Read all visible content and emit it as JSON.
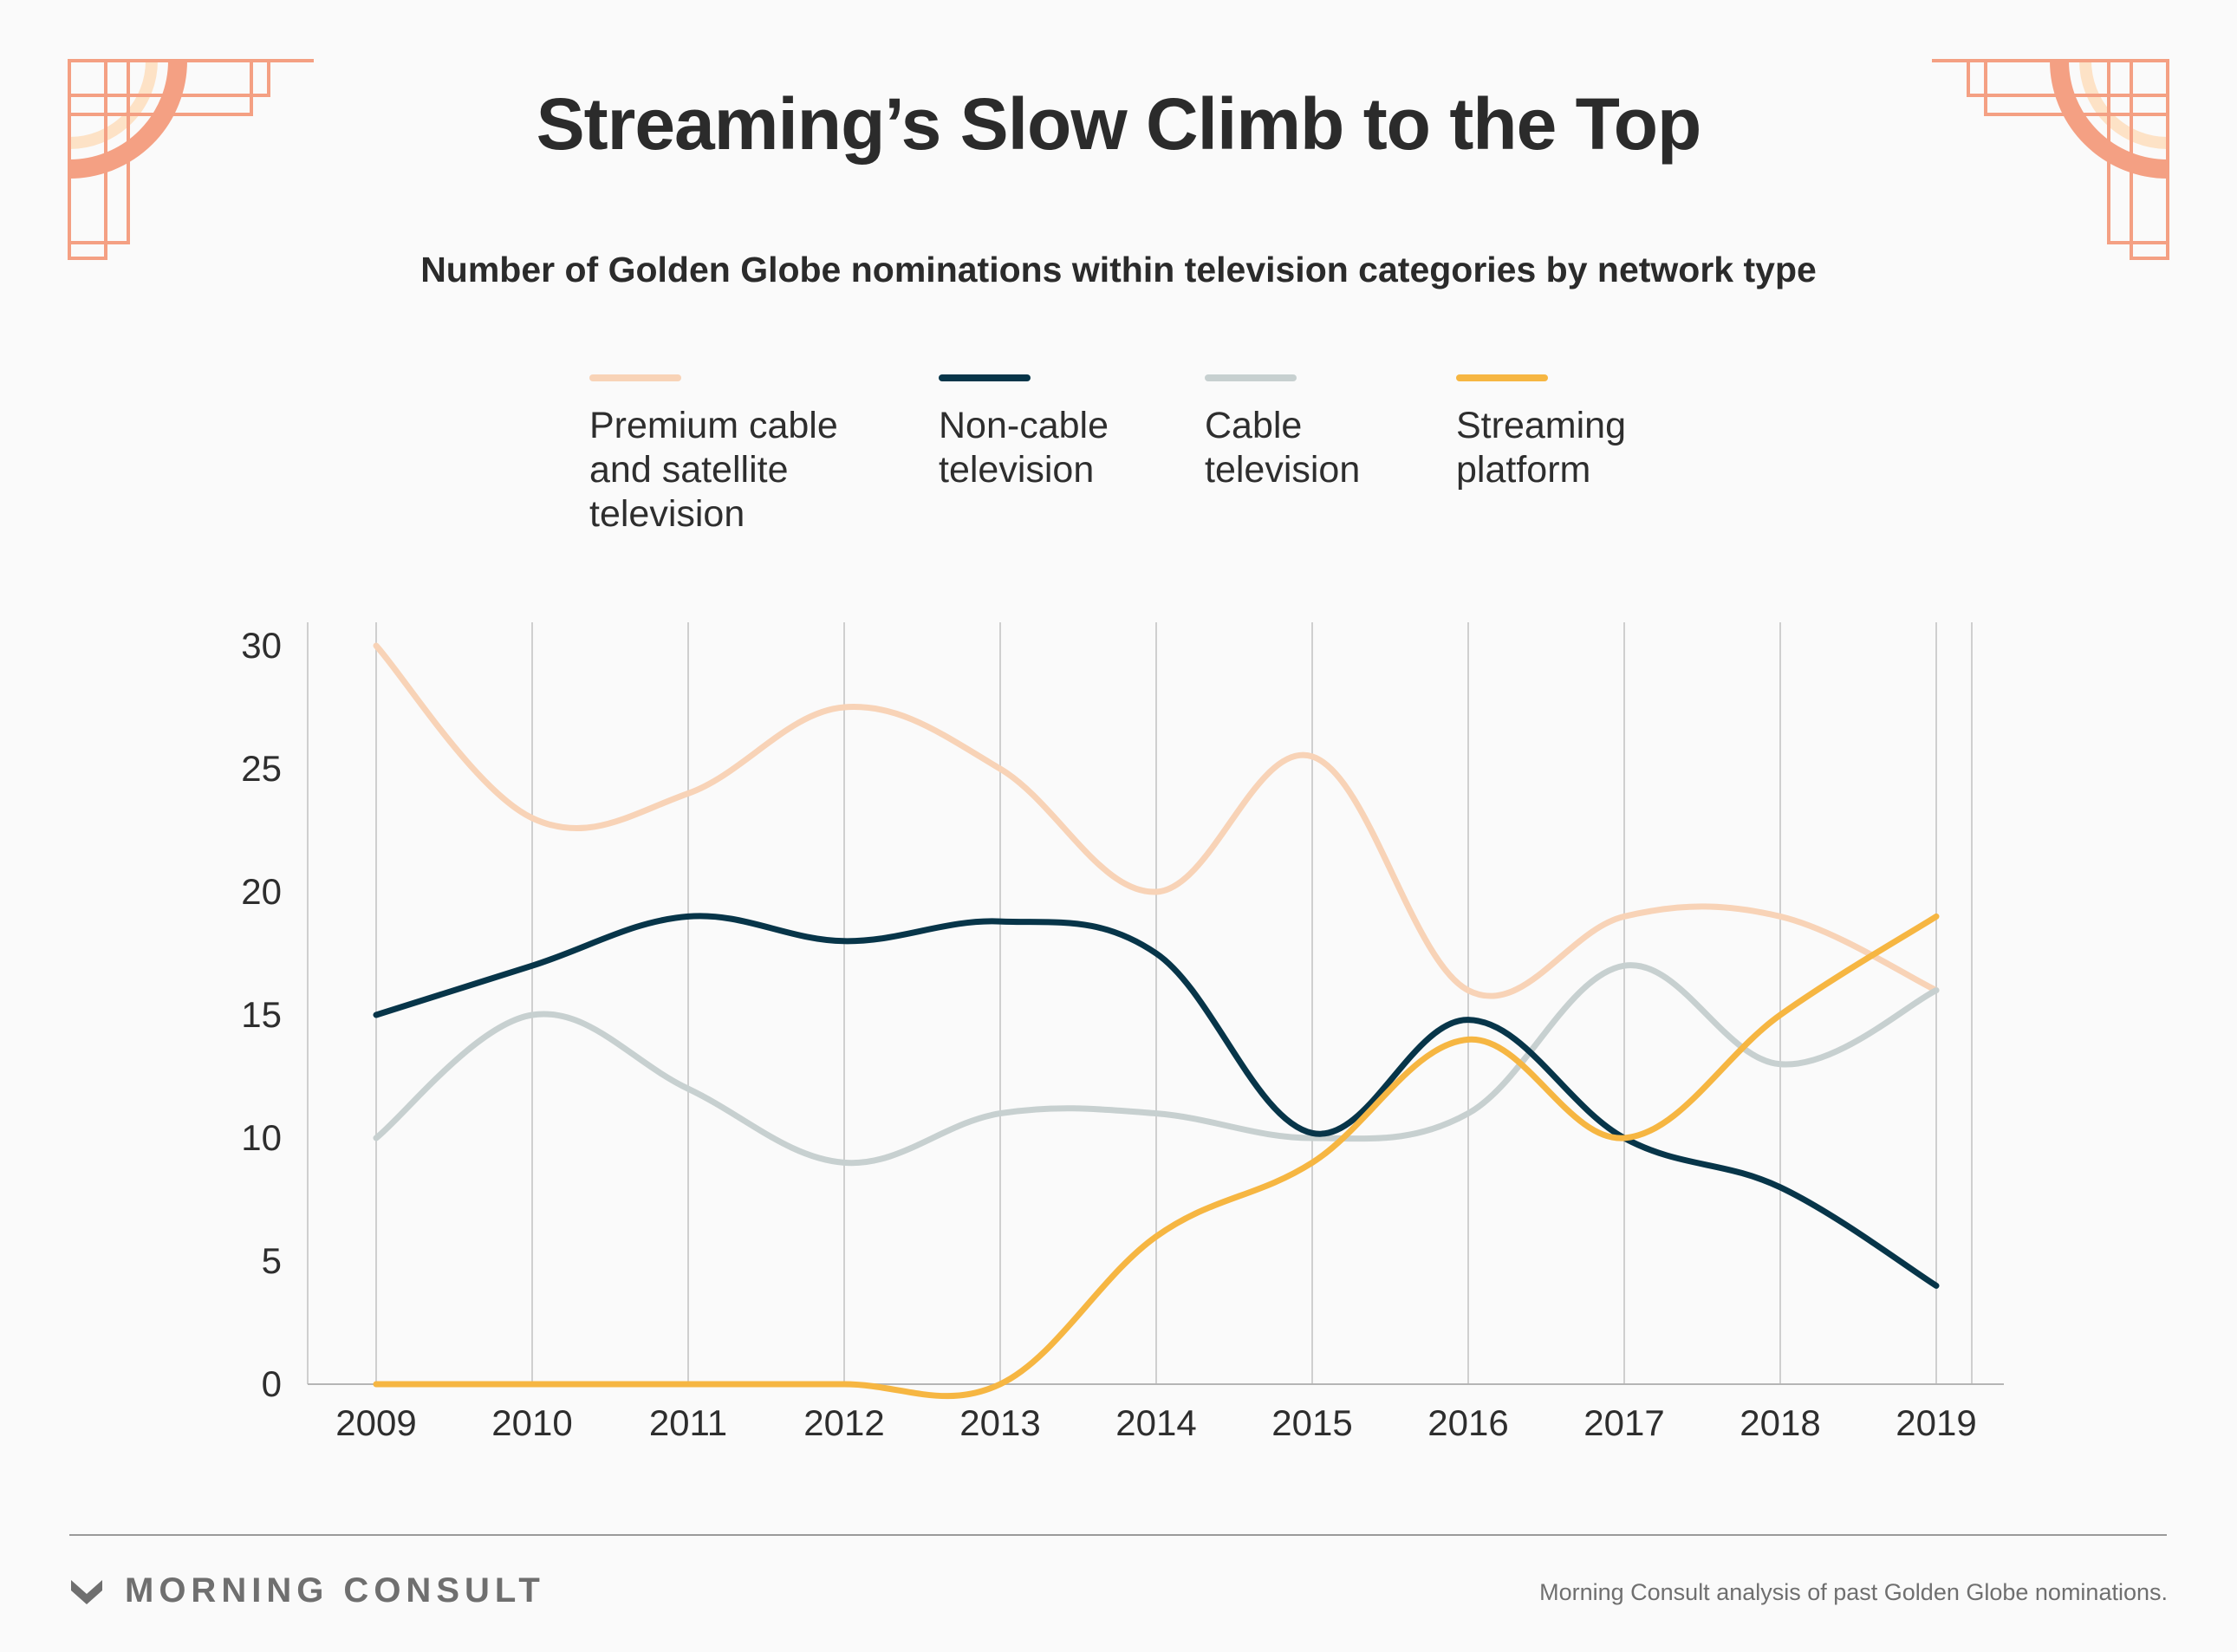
{
  "title": "Streaming’s Slow Climb to the Top",
  "subtitle": "Number of Golden Globe nominations within television categories by network type",
  "legend": [
    {
      "label": "Premium cable and satellite television",
      "color": "#f8d3b7"
    },
    {
      "label": "Non-cable television",
      "color": "#073549"
    },
    {
      "label": "Cable television",
      "color": "#c7d0d0"
    },
    {
      "label": "Streaming platform",
      "color": "#f6b642"
    }
  ],
  "chart_data": {
    "type": "line",
    "x": [
      "2009",
      "2010",
      "2011",
      "2012",
      "2013",
      "2014",
      "2015",
      "2016",
      "2017",
      "2018",
      "2019"
    ],
    "series": [
      {
        "name": "Premium cable and satellite television",
        "color": "#f8d3b7",
        "values": [
          30,
          23,
          24,
          27.5,
          25,
          20,
          25.5,
          16,
          19,
          19,
          16
        ]
      },
      {
        "name": "Non-cable television",
        "color": "#073549",
        "values": [
          15,
          17,
          19,
          18,
          18.8,
          17.5,
          10.2,
          14.8,
          10,
          8,
          4
        ]
      },
      {
        "name": "Cable television",
        "color": "#c7d0d0",
        "values": [
          10,
          15,
          12,
          9,
          11,
          11,
          10,
          11,
          17,
          13,
          16
        ]
      },
      {
        "name": "Streaming platform",
        "color": "#f6b642",
        "values": [
          0,
          0,
          0,
          0,
          0,
          6,
          9,
          14,
          10,
          15,
          19
        ]
      }
    ],
    "y_ticks": [
      "0",
      "5",
      "10",
      "15",
      "20",
      "25",
      "30"
    ],
    "ylim": [
      0,
      30
    ],
    "grid": "vertical",
    "legend_position": "top"
  },
  "footer": {
    "brand": "MORNING CONSULT",
    "source": "Morning Consult analysis of past Golden Globe nominations."
  }
}
